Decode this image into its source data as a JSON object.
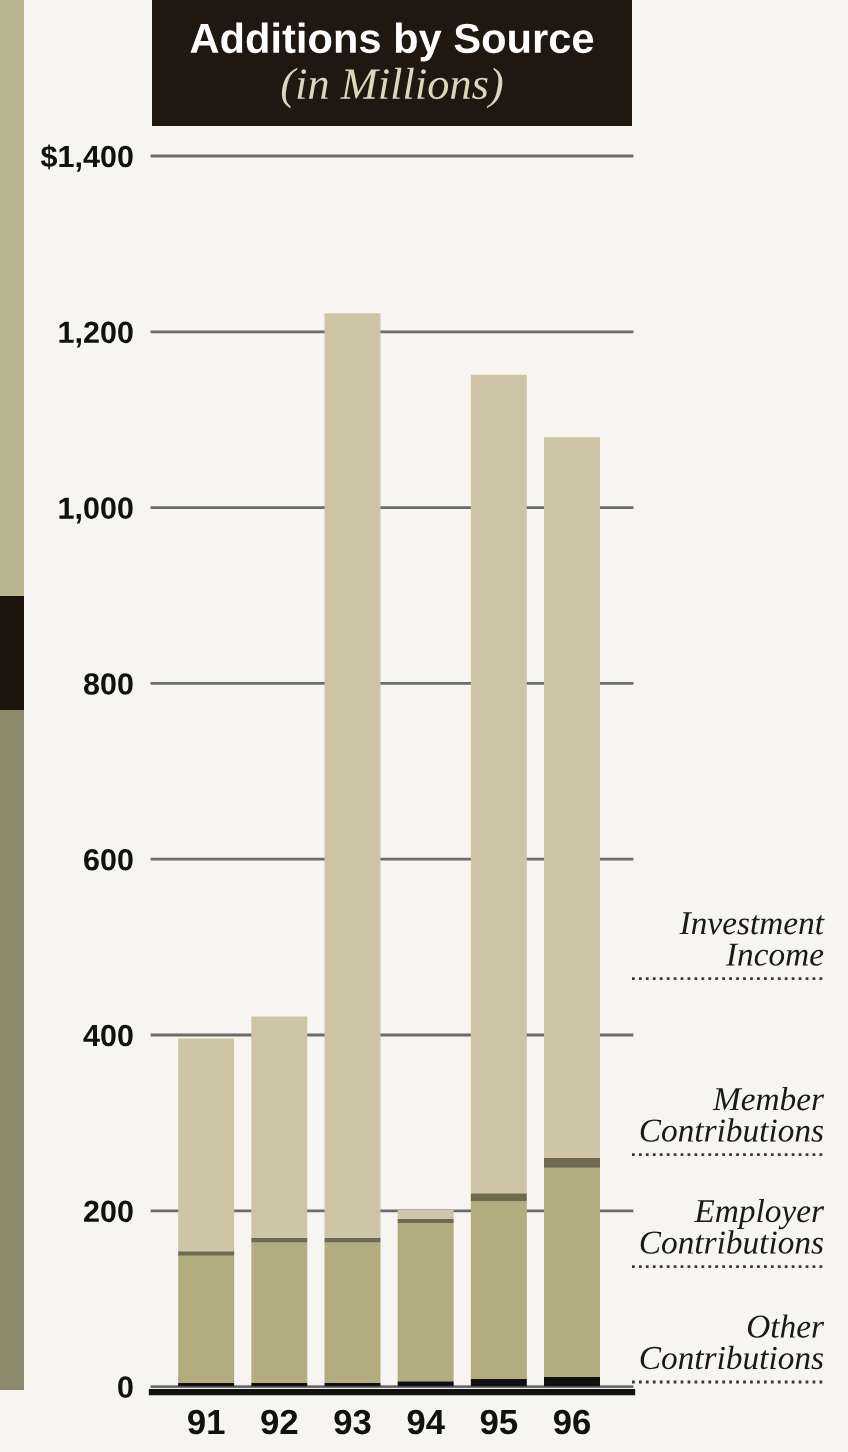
{
  "chart_data": {
    "type": "bar",
    "title": "Additions by Source",
    "subtitle": "(in Millions)",
    "categories": [
      "91",
      "92",
      "93",
      "94",
      "95",
      "96"
    ],
    "stacked": true,
    "series": [
      {
        "name": "Other Contributions",
        "color": "#111111",
        "values": [
          4,
          4,
          4,
          6,
          9,
          11
        ]
      },
      {
        "name": "Employer Contributions",
        "color": "#b2ac80",
        "values": [
          145,
          160,
          160,
          180,
          202,
          238
        ]
      },
      {
        "name": "Member Contributions",
        "color": "#6e6a4e",
        "values": [
          5,
          5,
          5,
          5,
          9,
          11
        ]
      },
      {
        "name": "Investment Income",
        "color": "#cdc5a5",
        "values": [
          242,
          252,
          1052,
          10,
          931,
          820
        ]
      }
    ],
    "ylim": [
      0,
      1400
    ],
    "yticks": [
      0,
      200,
      400,
      600,
      800,
      {
        "value": 1000,
        "label": "1,000"
      },
      {
        "value": 1200,
        "label": "1,200"
      },
      {
        "value": 1400,
        "label": "$1,400"
      }
    ],
    "grid": "y",
    "legend": "right"
  }
}
